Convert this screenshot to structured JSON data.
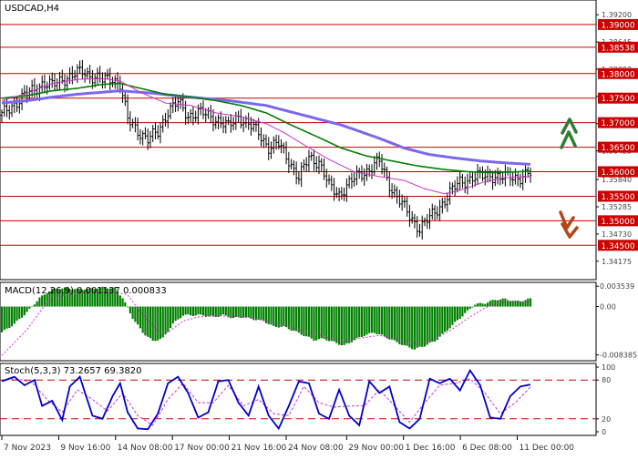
{
  "chart_data": {
    "type": "line",
    "title": "USDCAD,H4",
    "colors": {
      "price_bars": "#000000",
      "ma_fast": "#cc33cc",
      "ma_mid": "#008000",
      "ma_slow": "#7b68ee",
      "level_line": "#cc0000",
      "level_tag_bg": "#cc0000",
      "level_tag_text": "#ffffff",
      "arrow_up": "#2e7d32",
      "arrow_down": "#b5451b",
      "macd_hist": "#008000",
      "macd_signal": "#cc33cc",
      "stoch_main": "#0000cc",
      "stoch_signal": "#cc33cc",
      "stoch_levels": "#cc0000"
    },
    "price_panel": {
      "ylim": [
        1.338,
        1.395
      ],
      "ticks": [
        {
          "label": "1.39200",
          "value": 1.392
        },
        {
          "label": "1.38645",
          "value": 1.38645
        },
        {
          "label": "1.38090",
          "value": 1.3809
        },
        {
          "label": "1.37535",
          "value": 1.37535
        },
        {
          "label": "1.36980",
          "value": 1.3698
        },
        {
          "label": "1.36425",
          "value": 1.36425
        },
        {
          "label": "1.35840",
          "value": 1.3584
        },
        {
          "label": "1.35285",
          "value": 1.35285
        },
        {
          "label": "1.34730",
          "value": 1.3473
        },
        {
          "label": "1.34175",
          "value": 1.34175
        }
      ],
      "levels": [
        {
          "label": "1.39000",
          "value": 1.39
        },
        {
          "label": "1.38538",
          "value": 1.38538
        },
        {
          "label": "1.38000",
          "value": 1.38
        },
        {
          "label": "1.37500",
          "value": 1.375
        },
        {
          "label": "1.37000",
          "value": 1.37
        },
        {
          "label": "1.36500",
          "value": 1.365
        },
        {
          "label": "1.36000",
          "value": 1.36
        },
        {
          "label": "1.35500",
          "value": 1.355
        },
        {
          "label": "1.35000",
          "value": 1.35
        },
        {
          "label": "1.34500",
          "value": 1.345
        }
      ],
      "close_points": [
        [
          0,
          1.3715
        ],
        [
          4,
          1.3735
        ],
        [
          8,
          1.375
        ],
        [
          12,
          1.3765
        ],
        [
          16,
          1.378
        ],
        [
          20,
          1.3775
        ],
        [
          24,
          1.379
        ],
        [
          28,
          1.3795
        ],
        [
          32,
          1.3805
        ],
        [
          36,
          1.3795
        ],
        [
          40,
          1.3785
        ],
        [
          44,
          1.3792
        ],
        [
          47,
          1.3778
        ],
        [
          50,
          1.3705
        ],
        [
          54,
          1.3685
        ],
        [
          58,
          1.3665
        ],
        [
          62,
          1.368
        ],
        [
          66,
          1.3725
        ],
        [
          70,
          1.374
        ],
        [
          74,
          1.3715
        ],
        [
          78,
          1.372
        ],
        [
          82,
          1.3715
        ],
        [
          86,
          1.3705
        ],
        [
          90,
          1.369
        ],
        [
          94,
          1.3715
        ],
        [
          98,
          1.3695
        ],
        [
          102,
          1.368
        ],
        [
          106,
          1.365
        ],
        [
          110,
          1.3655
        ],
        [
          114,
          1.3625
        ],
        [
          118,
          1.3585
        ],
        [
          122,
          1.363
        ],
        [
          126,
          1.362
        ],
        [
          130,
          1.357
        ],
        [
          134,
          1.3555
        ],
        [
          138,
          1.3575
        ],
        [
          142,
          1.3595
        ],
        [
          146,
          1.3605
        ],
        [
          150,
          1.362
        ],
        [
          154,
          1.3575
        ],
        [
          158,
          1.354
        ],
        [
          162,
          1.351
        ],
        [
          166,
          1.3485
        ],
        [
          170,
          1.3505
        ],
        [
          174,
          1.353
        ],
        [
          178,
          1.3555
        ],
        [
          182,
          1.358
        ],
        [
          186,
          1.3585
        ],
        [
          190,
          1.359
        ],
        [
          194,
          1.3595
        ],
        [
          198,
          1.3585
        ],
        [
          202,
          1.3592
        ],
        [
          206,
          1.3588
        ],
        [
          210,
          1.3595
        ]
      ],
      "candle_count": 211,
      "ma_fast": {
        "name": "",
        "points": [
          [
            0,
            1.3745
          ],
          [
            10,
            1.376
          ],
          [
            20,
            1.378
          ],
          [
            30,
            1.3788
          ],
          [
            40,
            1.379
          ],
          [
            47,
            1.3785
          ],
          [
            55,
            1.3762
          ],
          [
            65,
            1.374
          ],
          [
            75,
            1.3735
          ],
          [
            85,
            1.372
          ],
          [
            95,
            1.3712
          ],
          [
            105,
            1.3698
          ],
          [
            112,
            1.368
          ],
          [
            120,
            1.3655
          ],
          [
            130,
            1.3625
          ],
          [
            140,
            1.36
          ],
          [
            150,
            1.359
          ],
          [
            160,
            1.3582
          ],
          [
            168,
            1.3565
          ],
          [
            176,
            1.3555
          ],
          [
            184,
            1.3565
          ],
          [
            192,
            1.358
          ],
          [
            200,
            1.3588
          ],
          [
            210,
            1.359
          ]
        ]
      },
      "ma_mid": {
        "name": "",
        "points": [
          [
            0,
            1.375
          ],
          [
            10,
            1.3755
          ],
          [
            20,
            1.3765
          ],
          [
            30,
            1.377
          ],
          [
            40,
            1.3778
          ],
          [
            47,
            1.378
          ],
          [
            55,
            1.377
          ],
          [
            65,
            1.3758
          ],
          [
            75,
            1.3752
          ],
          [
            85,
            1.3745
          ],
          [
            95,
            1.3735
          ],
          [
            105,
            1.372
          ],
          [
            115,
            1.3695
          ],
          [
            125,
            1.3672
          ],
          [
            135,
            1.3648
          ],
          [
            145,
            1.3632
          ],
          [
            155,
            1.3622
          ],
          [
            165,
            1.3612
          ],
          [
            175,
            1.3605
          ],
          [
            185,
            1.36
          ],
          [
            195,
            1.3598
          ],
          [
            205,
            1.36
          ],
          [
            210,
            1.3601
          ]
        ]
      },
      "ma_slow": {
        "name": "",
        "points": [
          [
            0,
            1.374
          ],
          [
            10,
            1.3745
          ],
          [
            20,
            1.3752
          ],
          [
            30,
            1.3758
          ],
          [
            40,
            1.3762
          ],
          [
            47,
            1.3765
          ],
          [
            60,
            1.376
          ],
          [
            75,
            1.3752
          ],
          [
            90,
            1.3745
          ],
          [
            105,
            1.3735
          ],
          [
            120,
            1.3715
          ],
          [
            135,
            1.3695
          ],
          [
            150,
            1.3668
          ],
          [
            160,
            1.3648
          ],
          [
            170,
            1.3635
          ],
          [
            180,
            1.3628
          ],
          [
            190,
            1.3622
          ],
          [
            200,
            1.3618
          ],
          [
            210,
            1.3615
          ]
        ]
      }
    },
    "macd_panel": {
      "label": "MACD(12,26,9) 0.001137 0.000833",
      "ylim": [
        -0.0094,
        0.0042
      ],
      "ticks": [
        {
          "label": "0.003539",
          "value": 0.003539
        },
        {
          "label": "0.00",
          "value": 0.0
        },
        {
          "label": "-0.008385",
          "value": -0.008385
        }
      ],
      "histogram": [
        [
          0,
          -0.0045
        ],
        [
          5,
          -0.003
        ],
        [
          10,
          -0.001
        ],
        [
          15,
          0.0015
        ],
        [
          20,
          0.003
        ],
        [
          25,
          0.0032
        ],
        [
          30,
          0.003
        ],
        [
          35,
          0.0031
        ],
        [
          40,
          0.0033
        ],
        [
          45,
          0.0032
        ],
        [
          48,
          0.0015
        ],
        [
          52,
          -0.002
        ],
        [
          56,
          -0.0045
        ],
        [
          60,
          -0.006
        ],
        [
          64,
          -0.0055
        ],
        [
          68,
          -0.003
        ],
        [
          72,
          -0.0015
        ],
        [
          76,
          -0.0015
        ],
        [
          80,
          -0.0015
        ],
        [
          84,
          -0.0018
        ],
        [
          88,
          -0.0015
        ],
        [
          92,
          -0.002
        ],
        [
          96,
          -0.0018
        ],
        [
          100,
          -0.0022
        ],
        [
          104,
          -0.0025
        ],
        [
          108,
          -0.0035
        ],
        [
          112,
          -0.0035
        ],
        [
          116,
          -0.0042
        ],
        [
          120,
          -0.005
        ],
        [
          124,
          -0.0058
        ],
        [
          128,
          -0.0056
        ],
        [
          132,
          -0.0062
        ],
        [
          136,
          -0.0068
        ],
        [
          140,
          -0.0058
        ],
        [
          144,
          -0.005
        ],
        [
          148,
          -0.0045
        ],
        [
          152,
          -0.0052
        ],
        [
          156,
          -0.006
        ],
        [
          160,
          -0.0068
        ],
        [
          164,
          -0.0074
        ],
        [
          168,
          -0.0068
        ],
        [
          172,
          -0.006
        ],
        [
          176,
          -0.0045
        ],
        [
          180,
          -0.0028
        ],
        [
          184,
          -0.0012
        ],
        [
          188,
          0.0004
        ],
        [
          192,
          0.0006
        ],
        [
          196,
          0.0012
        ],
        [
          200,
          0.0013
        ],
        [
          204,
          0.0009
        ],
        [
          208,
          0.0011
        ],
        [
          210,
          0.0014
        ]
      ],
      "signal": [
        [
          0,
          -0.0085
        ],
        [
          10,
          -0.004
        ],
        [
          18,
          0.0008
        ],
        [
          25,
          0.002
        ],
        [
          35,
          0.0025
        ],
        [
          45,
          0.0026
        ],
        [
          50,
          0.002
        ],
        [
          56,
          -0.0015
        ],
        [
          62,
          -0.0042
        ],
        [
          66,
          -0.0045
        ],
        [
          72,
          -0.0025
        ],
        [
          78,
          -0.0018
        ],
        [
          88,
          -0.0016
        ],
        [
          98,
          -0.0019
        ],
        [
          108,
          -0.0028
        ],
        [
          118,
          -0.004
        ],
        [
          128,
          -0.0052
        ],
        [
          136,
          -0.006
        ],
        [
          142,
          -0.0055
        ],
        [
          150,
          -0.005
        ],
        [
          158,
          -0.0058
        ],
        [
          164,
          -0.0065
        ],
        [
          170,
          -0.006
        ],
        [
          178,
          -0.0042
        ],
        [
          186,
          -0.0018
        ],
        [
          192,
          -0.0002
        ],
        [
          198,
          0.0007
        ],
        [
          204,
          0.0009
        ],
        [
          210,
          0.0008
        ]
      ]
    },
    "stoch_panel": {
      "label": "Stoch(5,3,3) 73.2657 69.3820",
      "ylim": [
        0,
        100
      ],
      "ticks": [
        {
          "label": "100",
          "value": 100
        },
        {
          "label": "80",
          "value": 80
        },
        {
          "label": "20",
          "value": 20
        },
        {
          "label": "0",
          "value": 0
        }
      ],
      "levels": [
        80,
        20
      ],
      "main": [
        [
          0,
          78
        ],
        [
          5,
          85
        ],
        [
          9,
          72
        ],
        [
          13,
          80
        ],
        [
          16,
          40
        ],
        [
          20,
          48
        ],
        [
          24,
          18
        ],
        [
          27,
          70
        ],
        [
          31,
          85
        ],
        [
          36,
          25
        ],
        [
          40,
          20
        ],
        [
          44,
          55
        ],
        [
          47,
          75
        ],
        [
          50,
          30
        ],
        [
          54,
          5
        ],
        [
          58,
          4
        ],
        [
          62,
          28
        ],
        [
          66,
          75
        ],
        [
          70,
          85
        ],
        [
          74,
          60
        ],
        [
          78,
          22
        ],
        [
          82,
          30
        ],
        [
          86,
          78
        ],
        [
          90,
          80
        ],
        [
          94,
          45
        ],
        [
          98,
          25
        ],
        [
          102,
          70
        ],
        [
          106,
          25
        ],
        [
          110,
          5
        ],
        [
          114,
          40
        ],
        [
          118,
          78
        ],
        [
          122,
          75
        ],
        [
          126,
          28
        ],
        [
          130,
          20
        ],
        [
          134,
          65
        ],
        [
          138,
          25
        ],
        [
          142,
          10
        ],
        [
          146,
          78
        ],
        [
          150,
          60
        ],
        [
          154,
          70
        ],
        [
          158,
          15
        ],
        [
          162,
          5
        ],
        [
          166,
          20
        ],
        [
          170,
          82
        ],
        [
          174,
          75
        ],
        [
          178,
          82
        ],
        [
          182,
          64
        ],
        [
          186,
          95
        ],
        [
          190,
          72
        ],
        [
          194,
          22
        ],
        [
          198,
          20
        ],
        [
          202,
          55
        ],
        [
          206,
          70
        ],
        [
          210,
          73
        ]
      ],
      "signal": [
        [
          0,
          80
        ],
        [
          6,
          82
        ],
        [
          12,
          76
        ],
        [
          18,
          50
        ],
        [
          24,
          30
        ],
        [
          30,
          65
        ],
        [
          36,
          50
        ],
        [
          42,
          32
        ],
        [
          48,
          60
        ],
        [
          54,
          25
        ],
        [
          60,
          10
        ],
        [
          66,
          50
        ],
        [
          72,
          75
        ],
        [
          78,
          45
        ],
        [
          84,
          45
        ],
        [
          90,
          72
        ],
        [
          96,
          40
        ],
        [
          102,
          50
        ],
        [
          108,
          28
        ],
        [
          114,
          25
        ],
        [
          120,
          70
        ],
        [
          126,
          45
        ],
        [
          132,
          38
        ],
        [
          138,
          40
        ],
        [
          144,
          40
        ],
        [
          150,
          65
        ],
        [
          156,
          40
        ],
        [
          162,
          15
        ],
        [
          168,
          45
        ],
        [
          174,
          72
        ],
        [
          180,
          75
        ],
        [
          186,
          82
        ],
        [
          192,
          60
        ],
        [
          198,
          28
        ],
        [
          204,
          45
        ],
        [
          210,
          69
        ]
      ]
    },
    "x_axis": {
      "labels": [
        {
          "label": "7 Nov 2023",
          "index": 0
        },
        {
          "label": "9 Nov 16:00",
          "index": 16
        },
        {
          "label": "14 Nov 08:00",
          "index": 32
        },
        {
          "label": "17 Nov 00:00",
          "index": 48
        },
        {
          "label": "21 Nov 16:00",
          "index": 64
        },
        {
          "label": "24 Nov 08:00",
          "index": 80
        },
        {
          "label": "29 Nov 00:00",
          "index": 97
        },
        {
          "label": "1 Dec 16:00",
          "index": 113
        },
        {
          "label": "6 Dec 08:00",
          "index": 129
        },
        {
          "label": "11 Dec 00:00",
          "index": 145
        }
      ]
    },
    "grid": false,
    "legend": "none"
  }
}
